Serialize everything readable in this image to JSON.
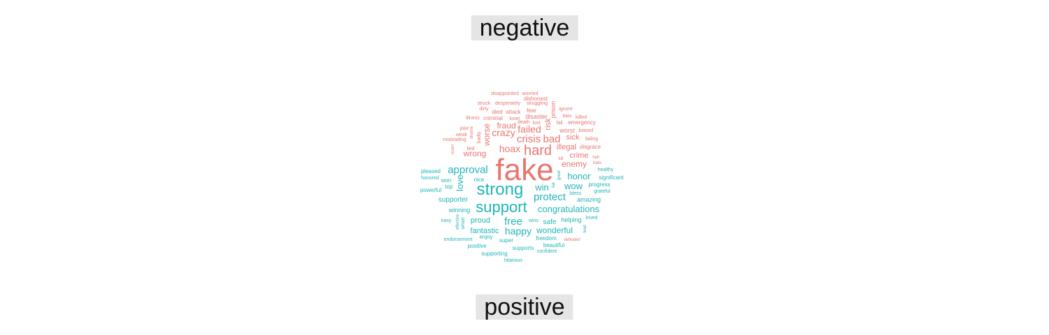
{
  "chart_data": {
    "type": "wordcloud",
    "groups": [
      {
        "name": "negative",
        "color": "#e8766f"
      },
      {
        "name": "positive",
        "color": "#1fb5b8"
      }
    ],
    "words": [
      {
        "text": "fake",
        "group": "negative",
        "weight": 44
      },
      {
        "text": "hard",
        "group": "negative",
        "weight": 20
      },
      {
        "text": "crisis",
        "group": "negative",
        "weight": 15
      },
      {
        "text": "bad",
        "group": "negative",
        "weight": 15
      },
      {
        "text": "hoax",
        "group": "negative",
        "weight": 14
      },
      {
        "text": "crazy",
        "group": "negative",
        "weight": 14
      },
      {
        "text": "failed",
        "group": "negative",
        "weight": 14
      },
      {
        "text": "wrong",
        "group": "negative",
        "weight": 12
      },
      {
        "text": "worse",
        "group": "negative",
        "weight": 12
      },
      {
        "text": "fraud",
        "group": "negative",
        "weight": 12
      },
      {
        "text": "enemy",
        "group": "negative",
        "weight": 12
      },
      {
        "text": "risk",
        "group": "negative",
        "weight": 11
      },
      {
        "text": "illegal",
        "group": "negative",
        "weight": 11
      },
      {
        "text": "sick",
        "group": "negative",
        "weight": 11
      },
      {
        "text": "crime",
        "group": "negative",
        "weight": 11
      },
      {
        "text": "worst",
        "group": "negative",
        "weight": 9
      },
      {
        "text": "prison",
        "group": "negative",
        "weight": 9
      },
      {
        "text": "disaster",
        "group": "negative",
        "weight": 9
      },
      {
        "text": "emergency",
        "group": "negative",
        "weight": 8
      },
      {
        "text": "disgrace",
        "group": "negative",
        "weight": 8
      },
      {
        "text": "dishonest",
        "group": "negative",
        "weight": 8
      },
      {
        "text": "attack",
        "group": "negative",
        "weight": 8
      },
      {
        "text": "died",
        "group": "negative",
        "weight": 8
      },
      {
        "text": "fear",
        "group": "negative",
        "weight": 8
      },
      {
        "text": "criminal",
        "group": "negative",
        "weight": 8
      },
      {
        "text": "lost",
        "group": "negative",
        "weight": 7
      },
      {
        "text": "fail",
        "group": "negative",
        "weight": 7
      },
      {
        "text": "badly",
        "group": "negative",
        "weight": 7
      },
      {
        "text": "lied",
        "group": "negative",
        "weight": 7
      },
      {
        "text": "failing",
        "group": "negative",
        "weight": 7
      },
      {
        "text": "killed",
        "group": "negative",
        "weight": 7
      },
      {
        "text": "biased",
        "group": "negative",
        "weight": 7
      },
      {
        "text": "misleading",
        "group": "negative",
        "weight": 7
      },
      {
        "text": "joke",
        "group": "negative",
        "weight": 7
      },
      {
        "text": "disappointed",
        "group": "negative",
        "weight": 7
      },
      {
        "text": "worried",
        "group": "negative",
        "weight": 7
      },
      {
        "text": "struck",
        "group": "negative",
        "weight": 7
      },
      {
        "text": "desperately",
        "group": "negative",
        "weight": 7
      },
      {
        "text": "struggling",
        "group": "negative",
        "weight": 7
      },
      {
        "text": "dirty",
        "group": "negative",
        "weight": 7
      },
      {
        "text": "loser",
        "group": "negative",
        "weight": 7
      },
      {
        "text": "ignore",
        "group": "negative",
        "weight": 7
      },
      {
        "text": "bias",
        "group": "negative",
        "weight": 7
      },
      {
        "text": "illness",
        "group": "negative",
        "weight": 7
      },
      {
        "text": "death",
        "group": "negative",
        "weight": 7
      },
      {
        "text": "weak",
        "group": "negative",
        "weight": 7
      },
      {
        "text": "scam",
        "group": "negative",
        "weight": 6
      },
      {
        "text": "shame",
        "group": "negative",
        "weight": 6
      },
      {
        "text": "hell",
        "group": "negative",
        "weight": 6
      },
      {
        "text": "hate",
        "group": "negative",
        "weight": 6
      },
      {
        "text": "kill",
        "group": "negative",
        "weight": 6
      },
      {
        "text": "defeated",
        "group": "negative",
        "weight": 6
      },
      {
        "text": "support",
        "group": "positive",
        "weight": 22
      },
      {
        "text": "strong",
        "group": "positive",
        "weight": 24
      },
      {
        "text": "approval",
        "group": "positive",
        "weight": 15
      },
      {
        "text": "protect",
        "group": "positive",
        "weight": 15
      },
      {
        "text": "congratulations",
        "group": "positive",
        "weight": 13
      },
      {
        "text": "free",
        "group": "positive",
        "weight": 15
      },
      {
        "text": "happy",
        "group": "positive",
        "weight": 14
      },
      {
        "text": "win",
        "group": "positive",
        "weight": 13
      },
      {
        "text": "honor",
        "group": "positive",
        "weight": 13
      },
      {
        "text": "wow",
        "group": "positive",
        "weight": 13
      },
      {
        "text": "love",
        "group": "positive",
        "weight": 13
      },
      {
        "text": "wonderful",
        "group": "positive",
        "weight": 12
      },
      {
        "text": "fantastic",
        "group": "positive",
        "weight": 11
      },
      {
        "text": "proud",
        "group": "positive",
        "weight": 11
      },
      {
        "text": "safe",
        "group": "positive",
        "weight": 10
      },
      {
        "text": "supporter",
        "group": "positive",
        "weight": 10
      },
      {
        "text": "amazing",
        "group": "positive",
        "weight": 9
      },
      {
        "text": "winning",
        "group": "positive",
        "weight": 9
      },
      {
        "text": "helping",
        "group": "positive",
        "weight": 9
      },
      {
        "text": "significant",
        "group": "positive",
        "weight": 8
      },
      {
        "text": "nice",
        "group": "positive",
        "weight": 8
      },
      {
        "text": "beautiful",
        "group": "positive",
        "weight": 8
      },
      {
        "text": "freedom",
        "group": "positive",
        "weight": 8
      },
      {
        "text": "super",
        "group": "positive",
        "weight": 8
      },
      {
        "text": "enjoy",
        "group": "positive",
        "weight": 8
      },
      {
        "text": "supports",
        "group": "positive",
        "weight": 8
      },
      {
        "text": "pleased",
        "group": "positive",
        "weight": 8
      },
      {
        "text": "progress",
        "group": "positive",
        "weight": 8
      },
      {
        "text": "won",
        "group": "positive",
        "weight": 8
      },
      {
        "text": "top",
        "group": "positive",
        "weight": 8
      },
      {
        "text": "powerful",
        "group": "positive",
        "weight": 8
      },
      {
        "text": "positive",
        "group": "positive",
        "weight": 8
      },
      {
        "text": "supporting",
        "group": "positive",
        "weight": 8
      },
      {
        "text": "smart",
        "group": "positive",
        "weight": 7
      },
      {
        "text": "endorsement",
        "group": "positive",
        "weight": 7
      },
      {
        "text": "confident",
        "group": "positive",
        "weight": 7
      },
      {
        "text": "grateful",
        "group": "positive",
        "weight": 7
      },
      {
        "text": "healthy",
        "group": "positive",
        "weight": 7
      },
      {
        "text": "honored",
        "group": "positive",
        "weight": 7
      },
      {
        "text": "bless",
        "group": "positive",
        "weight": 7
      },
      {
        "text": "wins",
        "group": "positive",
        "weight": 7
      },
      {
        "text": "loved",
        "group": "positive",
        "weight": 7
      },
      {
        "text": "easy",
        "group": "positive",
        "weight": 7
      },
      {
        "text": "hilarious",
        "group": "positive",
        "weight": 7
      },
      {
        "text": "effective",
        "group": "positive",
        "weight": 6
      },
      {
        "text": "great",
        "group": "positive",
        "weight": 6
      },
      {
        "text": "fair",
        "group": "positive",
        "weight": 6
      },
      {
        "text": "lead",
        "group": "positive",
        "weight": 6
      }
    ]
  }
}
